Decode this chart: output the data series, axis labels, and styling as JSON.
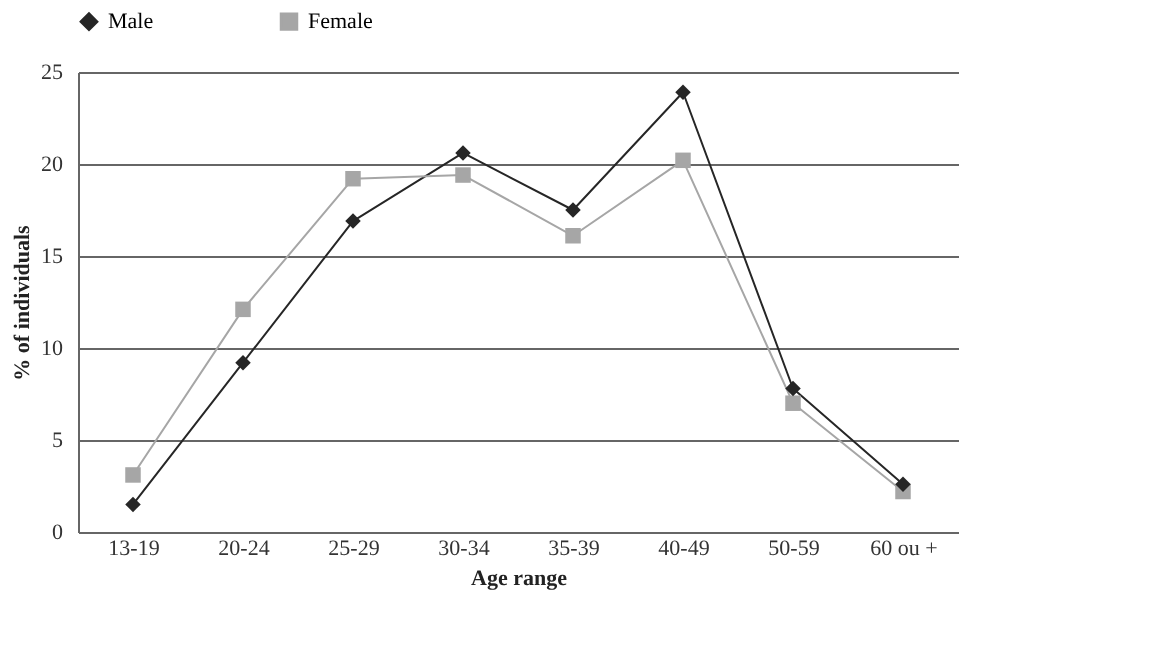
{
  "chart_data": {
    "type": "line",
    "xlabel": "Age range",
    "ylabel": "% of individuals",
    "categories": [
      "13-19",
      "20-24",
      "25-29",
      "30-34",
      "35-39",
      "40-49",
      "50-59",
      "60 ou +"
    ],
    "series": [
      {
        "name": "Male",
        "color": "#262626",
        "marker": "diamond",
        "values": [
          1.5,
          9.2,
          16.9,
          20.6,
          17.5,
          23.9,
          7.8,
          2.6
        ]
      },
      {
        "name": "Female",
        "color": "#a6a6a6",
        "marker": "square",
        "values": [
          3.1,
          12.1,
          19.2,
          19.4,
          16.1,
          20.2,
          7.0,
          2.2
        ]
      }
    ],
    "ylim": [
      0,
      25
    ],
    "yticks": [
      0,
      5,
      10,
      15,
      20,
      25
    ],
    "grid": "y",
    "legend": "top",
    "line_style": "solid"
  }
}
